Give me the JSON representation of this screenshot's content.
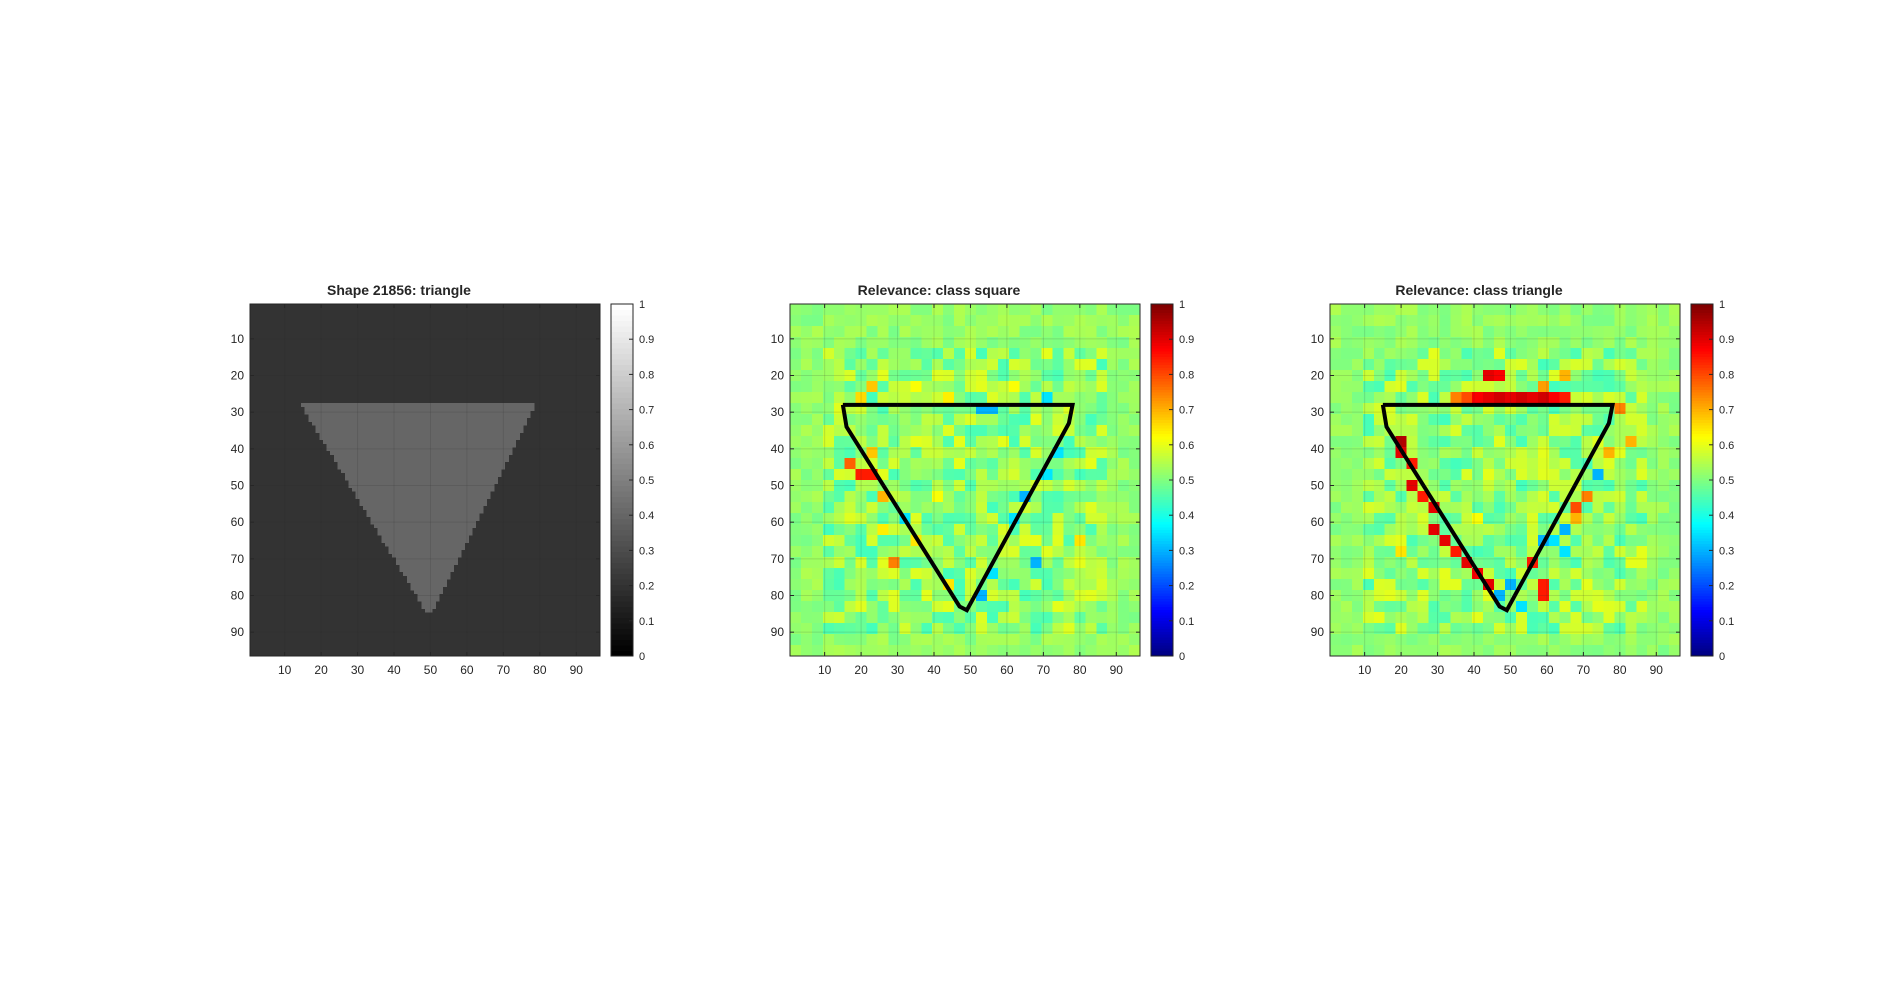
{
  "figure": {
    "background": "#ffffff",
    "axis_color": "#262626"
  },
  "chart_data": [
    {
      "type": "heatmap",
      "title": "Shape 21856: triangle",
      "colormap": "gray",
      "grid": true,
      "image_size": [
        96,
        96
      ],
      "xlim": [
        0.5,
        96.5
      ],
      "ylim": [
        0.5,
        96.5
      ],
      "xticks": [
        10,
        20,
        30,
        40,
        50,
        60,
        70,
        80,
        90
      ],
      "yticks": [
        10,
        20,
        30,
        40,
        50,
        60,
        70,
        80,
        90
      ],
      "clim": [
        0,
        1
      ],
      "colorbar_ticks": [
        "0",
        "0.1",
        "0.2",
        "0.3",
        "0.4",
        "0.5",
        "0.6",
        "0.7",
        "0.8",
        "0.9",
        "1"
      ],
      "background_value": 0.2,
      "shape_value": 0.4,
      "shape_rows": {
        "first_row": 28,
        "last_row": 84,
        "left_start": 15,
        "right_start": 78,
        "apex_col": 49
      }
    },
    {
      "type": "heatmap",
      "title": "Relevance: class square",
      "colormap": "jet",
      "grid": true,
      "image_size": [
        96,
        96
      ],
      "cell_size": 3,
      "xlim": [
        0.5,
        96.5
      ],
      "ylim": [
        0.5,
        96.5
      ],
      "xticks": [
        10,
        20,
        30,
        40,
        50,
        60,
        70,
        80,
        90
      ],
      "yticks": [
        10,
        20,
        30,
        40,
        50,
        60,
        70,
        80,
        90
      ],
      "clim": [
        0,
        1
      ],
      "colorbar_ticks": [
        "0",
        "0.1",
        "0.2",
        "0.3",
        "0.4",
        "0.5",
        "0.6",
        "0.7",
        "0.8",
        "0.9",
        "1"
      ],
      "background_value": 0.52,
      "outline": [
        [
          15,
          28
        ],
        [
          75,
          28
        ],
        [
          78,
          28
        ],
        [
          77,
          33
        ],
        [
          49,
          84
        ],
        [
          47,
          83
        ],
        [
          16,
          34
        ],
        [
          15,
          28
        ]
      ],
      "hotspots": [
        {
          "row": 25,
          "col": 19,
          "value": 0.66
        },
        {
          "row": 24,
          "col": 22,
          "value": 0.68
        },
        {
          "row": 22,
          "col": 34,
          "value": 0.62
        },
        {
          "row": 25,
          "col": 43,
          "value": 0.64
        },
        {
          "row": 28,
          "col": 52,
          "value": 0.3
        },
        {
          "row": 28,
          "col": 55,
          "value": 0.3
        },
        {
          "row": 22,
          "col": 61,
          "value": 0.62
        },
        {
          "row": 25,
          "col": 70,
          "value": 0.35
        },
        {
          "row": 43,
          "col": 16,
          "value": 0.78
        },
        {
          "row": 46,
          "col": 19,
          "value": 0.85
        },
        {
          "row": 46,
          "col": 22,
          "value": 0.85
        },
        {
          "row": 52,
          "col": 25,
          "value": 0.7
        },
        {
          "row": 40,
          "col": 22,
          "value": 0.68
        },
        {
          "row": 58,
          "col": 31,
          "value": 0.35
        },
        {
          "row": 64,
          "col": 34,
          "value": 0.65
        },
        {
          "row": 70,
          "col": 28,
          "value": 0.75
        },
        {
          "row": 40,
          "col": 73,
          "value": 0.35
        },
        {
          "row": 46,
          "col": 70,
          "value": 0.35
        },
        {
          "row": 52,
          "col": 64,
          "value": 0.3
        },
        {
          "row": 58,
          "col": 61,
          "value": 0.35
        },
        {
          "row": 70,
          "col": 67,
          "value": 0.3
        },
        {
          "row": 73,
          "col": 55,
          "value": 0.35
        },
        {
          "row": 79,
          "col": 52,
          "value": 0.3
        },
        {
          "row": 76,
          "col": 43,
          "value": 0.65
        },
        {
          "row": 37,
          "col": 46,
          "value": 0.6
        },
        {
          "row": 52,
          "col": 40,
          "value": 0.62
        },
        {
          "row": 61,
          "col": 25,
          "value": 0.64
        },
        {
          "row": 64,
          "col": 79,
          "value": 0.65
        }
      ]
    },
    {
      "type": "heatmap",
      "title": "Relevance: class triangle",
      "colormap": "jet",
      "grid": true,
      "image_size": [
        96,
        96
      ],
      "cell_size": 3,
      "xlim": [
        0.5,
        96.5
      ],
      "ylim": [
        0.5,
        96.5
      ],
      "xticks": [
        10,
        20,
        30,
        40,
        50,
        60,
        70,
        80,
        90
      ],
      "yticks": [
        10,
        20,
        30,
        40,
        50,
        60,
        70,
        80,
        90
      ],
      "clim": [
        0,
        1
      ],
      "colorbar_ticks": [
        "0",
        "0.1",
        "0.2",
        "0.3",
        "0.4",
        "0.5",
        "0.6",
        "0.7",
        "0.8",
        "0.9",
        "1"
      ],
      "background_value": 0.52,
      "outline": [
        [
          15,
          28
        ],
        [
          75,
          28
        ],
        [
          78,
          28
        ],
        [
          77,
          33
        ],
        [
          49,
          84
        ],
        [
          47,
          83
        ],
        [
          16,
          34
        ],
        [
          15,
          28
        ]
      ],
      "hotspots": [
        {
          "row": 19,
          "col": 43,
          "value": 0.9
        },
        {
          "row": 19,
          "col": 46,
          "value": 0.88
        },
        {
          "row": 19,
          "col": 64,
          "value": 0.7
        },
        {
          "row": 22,
          "col": 58,
          "value": 0.72
        },
        {
          "row": 25,
          "col": 40,
          "value": 0.88
        },
        {
          "row": 25,
          "col": 43,
          "value": 0.9
        },
        {
          "row": 25,
          "col": 46,
          "value": 0.92
        },
        {
          "row": 25,
          "col": 49,
          "value": 0.9
        },
        {
          "row": 25,
          "col": 52,
          "value": 0.92
        },
        {
          "row": 25,
          "col": 55,
          "value": 0.9
        },
        {
          "row": 25,
          "col": 58,
          "value": 0.92
        },
        {
          "row": 25,
          "col": 61,
          "value": 0.88
        },
        {
          "row": 25,
          "col": 64,
          "value": 0.85
        },
        {
          "row": 25,
          "col": 34,
          "value": 0.75
        },
        {
          "row": 25,
          "col": 37,
          "value": 0.8
        },
        {
          "row": 28,
          "col": 79,
          "value": 0.75
        },
        {
          "row": 37,
          "col": 19,
          "value": 0.95
        },
        {
          "row": 40,
          "col": 19,
          "value": 0.9
        },
        {
          "row": 43,
          "col": 22,
          "value": 0.85
        },
        {
          "row": 49,
          "col": 22,
          "value": 0.9
        },
        {
          "row": 52,
          "col": 25,
          "value": 0.85
        },
        {
          "row": 55,
          "col": 28,
          "value": 0.9
        },
        {
          "row": 61,
          "col": 28,
          "value": 0.9
        },
        {
          "row": 64,
          "col": 31,
          "value": 0.9
        },
        {
          "row": 67,
          "col": 34,
          "value": 0.85
        },
        {
          "row": 70,
          "col": 37,
          "value": 0.9
        },
        {
          "row": 73,
          "col": 40,
          "value": 0.88
        },
        {
          "row": 76,
          "col": 43,
          "value": 0.9
        },
        {
          "row": 79,
          "col": 46,
          "value": 0.3
        },
        {
          "row": 79,
          "col": 58,
          "value": 0.85
        },
        {
          "row": 76,
          "col": 58,
          "value": 0.85
        },
        {
          "row": 70,
          "col": 55,
          "value": 0.85
        },
        {
          "row": 64,
          "col": 58,
          "value": 0.3
        },
        {
          "row": 61,
          "col": 64,
          "value": 0.3
        },
        {
          "row": 58,
          "col": 67,
          "value": 0.7
        },
        {
          "row": 55,
          "col": 67,
          "value": 0.8
        },
        {
          "row": 52,
          "col": 70,
          "value": 0.75
        },
        {
          "row": 46,
          "col": 73,
          "value": 0.3
        },
        {
          "row": 40,
          "col": 76,
          "value": 0.7
        },
        {
          "row": 37,
          "col": 82,
          "value": 0.7
        },
        {
          "row": 64,
          "col": 61,
          "value": 0.35
        },
        {
          "row": 67,
          "col": 64,
          "value": 0.35
        },
        {
          "row": 76,
          "col": 49,
          "value": 0.3
        },
        {
          "row": 82,
          "col": 52,
          "value": 0.35
        },
        {
          "row": 58,
          "col": 40,
          "value": 0.62
        },
        {
          "row": 46,
          "col": 43,
          "value": 0.6
        },
        {
          "row": 67,
          "col": 19,
          "value": 0.65
        },
        {
          "row": 70,
          "col": 82,
          "value": 0.6
        }
      ]
    }
  ]
}
